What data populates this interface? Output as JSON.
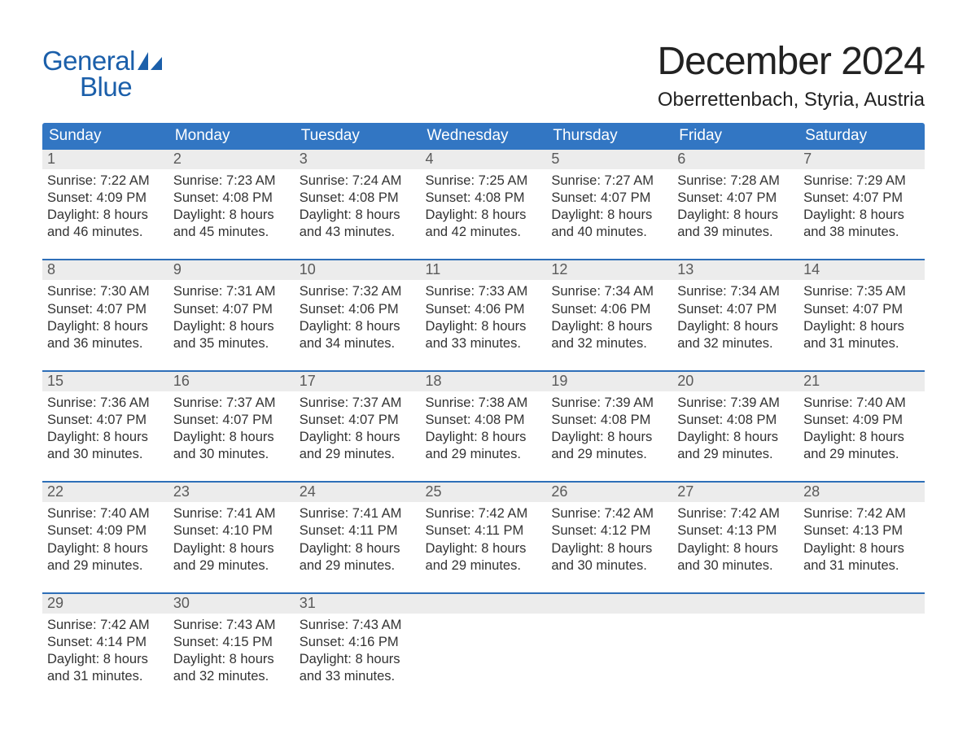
{
  "brand": {
    "general": "General",
    "blue": "Blue"
  },
  "title": "December 2024",
  "location": "Oberrettenbach, Styria, Austria",
  "columns": [
    "Sunday",
    "Monday",
    "Tuesday",
    "Wednesday",
    "Thursday",
    "Friday",
    "Saturday"
  ],
  "labels": {
    "sunrise": "Sunrise",
    "sunset": "Sunset",
    "daylight": "Daylight"
  },
  "colors": {
    "blue_header": "#3276c3",
    "blue_accent": "#1b5faa",
    "blue_border": "#2e6fb8",
    "text_dark": "#333333",
    "cell_gray": "#ececec",
    "page_bg": "#ffffff"
  },
  "typography": {
    "title_fontsize": 48,
    "location_fontsize": 24,
    "header_fontsize": 19,
    "daynum_fontsize": 18,
    "body_fontsize": 16.5,
    "font_family": "Arial"
  },
  "weeks": [
    [
      {
        "day": 1,
        "sunrise": "7:22 AM",
        "sunset": "4:09 PM",
        "daylight_h": 8,
        "daylight_m": 46
      },
      {
        "day": 2,
        "sunrise": "7:23 AM",
        "sunset": "4:08 PM",
        "daylight_h": 8,
        "daylight_m": 45
      },
      {
        "day": 3,
        "sunrise": "7:24 AM",
        "sunset": "4:08 PM",
        "daylight_h": 8,
        "daylight_m": 43
      },
      {
        "day": 4,
        "sunrise": "7:25 AM",
        "sunset": "4:08 PM",
        "daylight_h": 8,
        "daylight_m": 42
      },
      {
        "day": 5,
        "sunrise": "7:27 AM",
        "sunset": "4:07 PM",
        "daylight_h": 8,
        "daylight_m": 40
      },
      {
        "day": 6,
        "sunrise": "7:28 AM",
        "sunset": "4:07 PM",
        "daylight_h": 8,
        "daylight_m": 39
      },
      {
        "day": 7,
        "sunrise": "7:29 AM",
        "sunset": "4:07 PM",
        "daylight_h": 8,
        "daylight_m": 38
      }
    ],
    [
      {
        "day": 8,
        "sunrise": "7:30 AM",
        "sunset": "4:07 PM",
        "daylight_h": 8,
        "daylight_m": 36
      },
      {
        "day": 9,
        "sunrise": "7:31 AM",
        "sunset": "4:07 PM",
        "daylight_h": 8,
        "daylight_m": 35
      },
      {
        "day": 10,
        "sunrise": "7:32 AM",
        "sunset": "4:06 PM",
        "daylight_h": 8,
        "daylight_m": 34
      },
      {
        "day": 11,
        "sunrise": "7:33 AM",
        "sunset": "4:06 PM",
        "daylight_h": 8,
        "daylight_m": 33
      },
      {
        "day": 12,
        "sunrise": "7:34 AM",
        "sunset": "4:06 PM",
        "daylight_h": 8,
        "daylight_m": 32
      },
      {
        "day": 13,
        "sunrise": "7:34 AM",
        "sunset": "4:07 PM",
        "daylight_h": 8,
        "daylight_m": 32
      },
      {
        "day": 14,
        "sunrise": "7:35 AM",
        "sunset": "4:07 PM",
        "daylight_h": 8,
        "daylight_m": 31
      }
    ],
    [
      {
        "day": 15,
        "sunrise": "7:36 AM",
        "sunset": "4:07 PM",
        "daylight_h": 8,
        "daylight_m": 30
      },
      {
        "day": 16,
        "sunrise": "7:37 AM",
        "sunset": "4:07 PM",
        "daylight_h": 8,
        "daylight_m": 30
      },
      {
        "day": 17,
        "sunrise": "7:37 AM",
        "sunset": "4:07 PM",
        "daylight_h": 8,
        "daylight_m": 29
      },
      {
        "day": 18,
        "sunrise": "7:38 AM",
        "sunset": "4:08 PM",
        "daylight_h": 8,
        "daylight_m": 29
      },
      {
        "day": 19,
        "sunrise": "7:39 AM",
        "sunset": "4:08 PM",
        "daylight_h": 8,
        "daylight_m": 29
      },
      {
        "day": 20,
        "sunrise": "7:39 AM",
        "sunset": "4:08 PM",
        "daylight_h": 8,
        "daylight_m": 29
      },
      {
        "day": 21,
        "sunrise": "7:40 AM",
        "sunset": "4:09 PM",
        "daylight_h": 8,
        "daylight_m": 29
      }
    ],
    [
      {
        "day": 22,
        "sunrise": "7:40 AM",
        "sunset": "4:09 PM",
        "daylight_h": 8,
        "daylight_m": 29
      },
      {
        "day": 23,
        "sunrise": "7:41 AM",
        "sunset": "4:10 PM",
        "daylight_h": 8,
        "daylight_m": 29
      },
      {
        "day": 24,
        "sunrise": "7:41 AM",
        "sunset": "4:11 PM",
        "daylight_h": 8,
        "daylight_m": 29
      },
      {
        "day": 25,
        "sunrise": "7:42 AM",
        "sunset": "4:11 PM",
        "daylight_h": 8,
        "daylight_m": 29
      },
      {
        "day": 26,
        "sunrise": "7:42 AM",
        "sunset": "4:12 PM",
        "daylight_h": 8,
        "daylight_m": 30
      },
      {
        "day": 27,
        "sunrise": "7:42 AM",
        "sunset": "4:13 PM",
        "daylight_h": 8,
        "daylight_m": 30
      },
      {
        "day": 28,
        "sunrise": "7:42 AM",
        "sunset": "4:13 PM",
        "daylight_h": 8,
        "daylight_m": 31
      }
    ],
    [
      {
        "day": 29,
        "sunrise": "7:42 AM",
        "sunset": "4:14 PM",
        "daylight_h": 8,
        "daylight_m": 31
      },
      {
        "day": 30,
        "sunrise": "7:43 AM",
        "sunset": "4:15 PM",
        "daylight_h": 8,
        "daylight_m": 32
      },
      {
        "day": 31,
        "sunrise": "7:43 AM",
        "sunset": "4:16 PM",
        "daylight_h": 8,
        "daylight_m": 33
      },
      null,
      null,
      null,
      null
    ]
  ]
}
